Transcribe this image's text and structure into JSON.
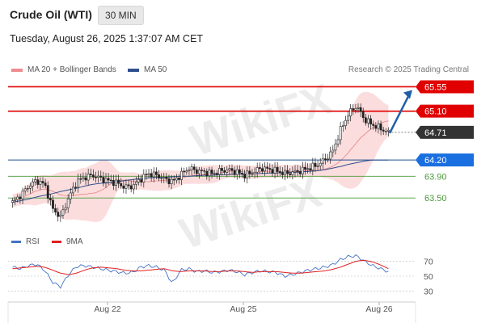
{
  "header": {
    "instrument": "Crude Oil (WTI)",
    "interval": "30 MIN",
    "timestamp": "Tuesday, August 26, 2025 1:37:07 AM CET"
  },
  "legend": {
    "items": [
      {
        "label": "MA 20 + Bollinger Bands",
        "color": "#f08c8c"
      },
      {
        "label": "MA 50",
        "color": "#2f4f8f"
      }
    ],
    "copyright": "Research © 2025 Trading Central"
  },
  "rsi_legend": {
    "items": [
      {
        "label": "RSI",
        "color": "#4472c4"
      },
      {
        "label": "9MA",
        "color": "#e02020"
      }
    ]
  },
  "watermark": "WikiFX",
  "colors": {
    "resistance": "#e00000",
    "support": "#1f4f8f",
    "target": "#4a9a3a",
    "current": "#333333",
    "arrow": "#1f5fa8"
  },
  "chart_data": [
    {
      "type": "candlestick",
      "title": "",
      "x_ticks": [
        "Aug 22",
        "Aug 25",
        "Aug 26"
      ],
      "ylim": [
        63.25,
        65.75
      ],
      "grid": false,
      "levels": [
        {
          "value": 65.55,
          "label": "65.55",
          "role": "resistance"
        },
        {
          "value": 65.1,
          "label": "65.10",
          "role": "resistance"
        },
        {
          "value": 64.71,
          "label": "64.71",
          "role": "current"
        },
        {
          "value": 64.2,
          "label": "64.20",
          "role": "support"
        },
        {
          "value": 63.9,
          "label": "63.90",
          "role": "target"
        },
        {
          "value": 63.5,
          "label": "63.50",
          "role": "target"
        }
      ],
      "close_path": [
        63.42,
        63.55,
        63.72,
        63.82,
        63.75,
        63.3,
        63.15,
        63.5,
        63.8,
        63.88,
        63.92,
        63.86,
        63.82,
        63.78,
        63.7,
        63.72,
        63.85,
        63.95,
        63.92,
        63.85,
        63.8,
        63.92,
        64.05,
        64.0,
        63.98,
        63.95,
        64.0,
        64.02,
        63.98,
        63.92,
        63.97,
        64.05,
        64.03,
        64.0,
        63.95,
        63.97,
        64.0,
        64.05,
        64.1,
        64.2,
        64.35,
        64.75,
        65.05,
        65.2,
        64.95,
        64.85,
        64.78,
        64.71
      ],
      "ma50_path": [
        63.42,
        63.45,
        63.48,
        63.52,
        63.55,
        63.58,
        63.62,
        63.65,
        63.68,
        63.72,
        63.75,
        63.77,
        63.78,
        63.8,
        63.82,
        63.84,
        63.86,
        63.87,
        63.88,
        63.88,
        63.89,
        63.9,
        63.9,
        63.91,
        63.92,
        63.92,
        63.93,
        63.93,
        63.94,
        63.94,
        63.95,
        63.95,
        63.96,
        63.96,
        63.97,
        63.97,
        63.98,
        63.99,
        64.0,
        64.02,
        64.05,
        64.08,
        64.12,
        64.15,
        64.18,
        64.2,
        64.2,
        64.2
      ]
    },
    {
      "type": "line",
      "title": "RSI",
      "x_ticks": [
        "Aug 22",
        "Aug 25",
        "Aug 26"
      ],
      "y_ticks": [
        70,
        50,
        30
      ],
      "ylim": [
        20,
        80
      ],
      "series": [
        {
          "name": "RSI",
          "values": [
            62,
            60,
            64,
            66,
            58,
            42,
            36,
            52,
            63,
            64,
            62,
            60,
            58,
            56,
            54,
            55,
            62,
            64,
            62,
            58,
            40,
            58,
            60,
            56,
            57,
            55,
            56,
            58,
            56,
            52,
            55,
            57,
            56,
            55,
            50,
            52,
            55,
            58,
            60,
            62,
            65,
            72,
            76,
            77,
            70,
            64,
            60,
            56
          ]
        },
        {
          "name": "9MA",
          "values": [
            60,
            61,
            62,
            63,
            62,
            58,
            54,
            52,
            54,
            58,
            61,
            62,
            61,
            60,
            58,
            57,
            57,
            58,
            59,
            60,
            57,
            56,
            57,
            57,
            57,
            56,
            56,
            57,
            57,
            56,
            55,
            56,
            56,
            56,
            55,
            54,
            54,
            55,
            56,
            57,
            59,
            62,
            66,
            70,
            71,
            69,
            65,
            60
          ]
        }
      ]
    }
  ]
}
